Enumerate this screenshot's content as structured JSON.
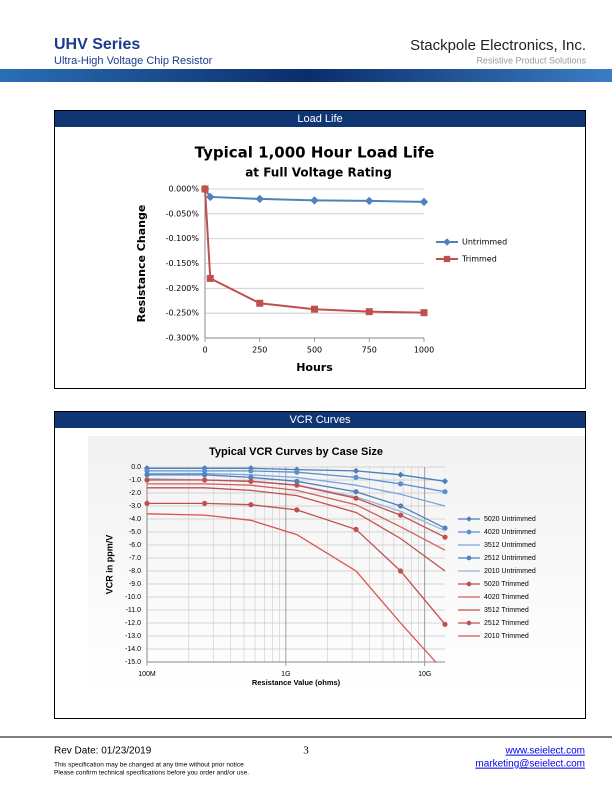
{
  "header": {
    "title": "UHV Series",
    "subtitle": "Ultra-High Voltage Chip Resistor",
    "company": "Stackpole Electronics, Inc.",
    "tagline": "Resistive Product Solutions"
  },
  "sections": [
    {
      "heading": "Load Life"
    },
    {
      "heading": "VCR Curves"
    }
  ],
  "chart_data": [
    {
      "type": "line",
      "title": "Typical 1,000 Hour Load Life",
      "subtitle": "at Full Voltage Rating",
      "x_label": "Hours",
      "y_label": "Resistance Change",
      "xlim": [
        0,
        1000
      ],
      "xticks": [
        0,
        250,
        500,
        750,
        1000
      ],
      "ylim": [
        -0.3,
        0
      ],
      "yticks": [
        {
          "value": 0,
          "label": "0.000%"
        },
        {
          "value": -0.05,
          "label": "-0.050%"
        },
        {
          "value": -0.1,
          "label": "-0.100%"
        },
        {
          "value": -0.15,
          "label": "-0.150%"
        },
        {
          "value": -0.2,
          "label": "-0.200%"
        },
        {
          "value": -0.25,
          "label": "-0.250%"
        },
        {
          "value": -0.3,
          "label": "-0.300%"
        }
      ],
      "grid": true,
      "log_x": false,
      "legend": "right",
      "series": [
        {
          "name": "Untrimmed",
          "color": "#4f81bd",
          "marker": "diamond",
          "x": [
            0,
            24,
            250,
            500,
            750,
            1000
          ],
          "values": [
            0,
            -0.016,
            -0.02,
            -0.023,
            -0.024,
            -0.026
          ]
        },
        {
          "name": "Trimmed",
          "color": "#c0504d",
          "marker": "square",
          "x": [
            0,
            24,
            250,
            500,
            750,
            1000
          ],
          "values": [
            0,
            -0.18,
            -0.23,
            -0.242,
            -0.247,
            -0.249
          ]
        }
      ]
    },
    {
      "type": "line",
      "title": "Typical VCR Curves by Case Size",
      "x_label": "Resistance Value (ohms)",
      "y_label": "VCR in ppm/V",
      "xlim": [
        100000000.0,
        14000000000.0
      ],
      "xticks": [
        {
          "value": 100000000.0,
          "label": "100M"
        },
        {
          "value": 1000000000.0,
          "label": "1G"
        },
        {
          "value": 10000000000.0,
          "label": "10G"
        }
      ],
      "ylim": [
        -15,
        0
      ],
      "yticks": [
        {
          "value": 0,
          "label": "0.0"
        },
        {
          "value": -1,
          "label": "-1.0"
        },
        {
          "value": -2,
          "label": "-2.0"
        },
        {
          "value": -3,
          "label": "-3.0"
        },
        {
          "value": -4,
          "label": "-4.0"
        },
        {
          "value": -5,
          "label": "-5.0"
        },
        {
          "value": -6,
          "label": "-6.0"
        },
        {
          "value": -7,
          "label": "-7.0"
        },
        {
          "value": -8,
          "label": "-8.0"
        },
        {
          "value": -9,
          "label": "-9.0"
        },
        {
          "value": -10,
          "label": "-10.0"
        },
        {
          "value": -11,
          "label": "-11.0"
        },
        {
          "value": -12,
          "label": "-12.0"
        },
        {
          "value": -13,
          "label": "-13.0"
        },
        {
          "value": -14,
          "label": "-14.0"
        },
        {
          "value": -15,
          "label": "-15.0"
        }
      ],
      "grid": true,
      "log_x": true,
      "legend": "right",
      "series": [
        {
          "name": "5020 Untrimmed",
          "color": "#4a7ebb",
          "marker": "diamond",
          "x": [
            100000000.0,
            260000000.0,
            560000000.0,
            1200000000.0,
            3200000000.0,
            6700000000.0,
            14000000000.0
          ],
          "values": [
            -0.1,
            -0.1,
            -0.1,
            -0.2,
            -0.3,
            -0.6,
            -1.1
          ]
        },
        {
          "name": "4020 Untrimmed",
          "color": "#5b8fd0",
          "marker": "circle",
          "x": [
            100000000.0,
            260000000.0,
            560000000.0,
            1200000000.0,
            3200000000.0,
            6700000000.0,
            14000000000.0
          ],
          "values": [
            -0.3,
            -0.3,
            -0.3,
            -0.4,
            -0.8,
            -1.3,
            -1.9
          ]
        },
        {
          "name": "3512 Untrimmed",
          "color": "#7aa6dc",
          "marker": "none",
          "x": [
            100000000.0,
            260000000.0,
            560000000.0,
            1200000000.0,
            3200000000.0,
            6700000000.0,
            14000000000.0
          ],
          "values": [
            -0.5,
            -0.5,
            -0.6,
            -0.8,
            -1.4,
            -2.1,
            -3.0
          ]
        },
        {
          "name": "2512 Untrimmed",
          "color": "#4f81bd",
          "marker": "circle",
          "x": [
            100000000.0,
            260000000.0,
            560000000.0,
            1200000000.0,
            3200000000.0,
            6700000000.0,
            14000000000.0
          ],
          "values": [
            -0.6,
            -0.6,
            -0.8,
            -1.1,
            -1.9,
            -3.0,
            -4.7
          ]
        },
        {
          "name": "2010 Untrimmed",
          "color": "#95b3d7",
          "marker": "none",
          "x": [
            100000000.0,
            260000000.0,
            560000000.0,
            1200000000.0,
            3200000000.0,
            6700000000.0,
            14000000000.0
          ],
          "values": [
            -0.9,
            -1.0,
            -1.1,
            -1.4,
            -2.3,
            -3.4,
            -4.9
          ]
        },
        {
          "name": "5020 Trimmed",
          "color": "#c0504d",
          "marker": "circle",
          "x": [
            100000000.0,
            260000000.0,
            560000000.0,
            1200000000.0,
            3200000000.0,
            6700000000.0,
            14000000000.0
          ],
          "values": [
            -1.0,
            -1.0,
            -1.1,
            -1.4,
            -2.4,
            -3.7,
            -5.4
          ]
        },
        {
          "name": "4020 Trimmed",
          "color": "#d0615e",
          "marker": "none",
          "x": [
            100000000.0,
            260000000.0,
            560000000.0,
            1200000000.0,
            3200000000.0,
            6700000000.0,
            14000000000.0
          ],
          "values": [
            -1.3,
            -1.3,
            -1.4,
            -1.8,
            -2.9,
            -4.6,
            -6.4
          ]
        },
        {
          "name": "3512 Trimmed",
          "color": "#c0504d",
          "marker": "none",
          "x": [
            100000000.0,
            260000000.0,
            560000000.0,
            1200000000.0,
            3200000000.0,
            6700000000.0,
            14000000000.0
          ],
          "values": [
            -1.6,
            -1.6,
            -1.8,
            -2.2,
            -3.5,
            -5.5,
            -8.0
          ]
        },
        {
          "name": "2512 Trimmed",
          "color": "#c0504d",
          "marker": "circle",
          "x": [
            100000000.0,
            260000000.0,
            560000000.0,
            1200000000.0,
            3200000000.0,
            6700000000.0,
            14000000000.0
          ],
          "values": [
            -2.8,
            -2.8,
            -2.9,
            -3.3,
            -4.8,
            -8.0,
            -12.1
          ]
        },
        {
          "name": "2010 Trimmed",
          "color": "#d9534f",
          "marker": "none",
          "x": [
            100000000.0,
            260000000.0,
            560000000.0,
            1200000000.0,
            3200000000.0,
            6700000000.0,
            12000000000.0
          ],
          "values": [
            -3.6,
            -3.7,
            -4.1,
            -5.2,
            -8.0,
            -12.0,
            -15.0
          ]
        }
      ]
    }
  ],
  "footer": {
    "rev_date": "Rev Date:  01/23/2019",
    "page": "3",
    "website": "www.seielect.com",
    "email": "marketing@seielect.com",
    "notice_1": "This specification may be changed at any time without prior notice",
    "notice_2": "Please confirm technical specifications before you order and/or use."
  }
}
